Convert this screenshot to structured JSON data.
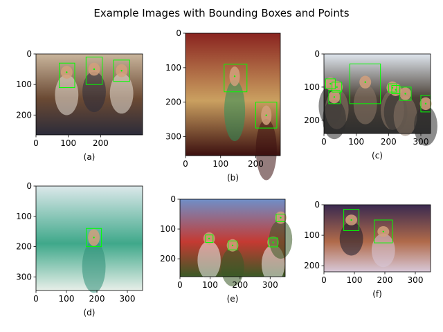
{
  "title": "Example Images with Bounding Boxes and Points",
  "box_color": "#00ff00",
  "chart_data": [
    {
      "type": "image",
      "label": "(a)",
      "xlim": [
        0,
        330
      ],
      "ylim": [
        265,
        0
      ],
      "xticks": [
        0,
        100,
        200
      ],
      "yticks": [
        0,
        100,
        200
      ],
      "scene_colors": [
        "#c9b59c",
        "#6b4a34",
        "#e8e0d6",
        "#2c2c3a"
      ],
      "boxes": [
        [
          72,
          30,
          120,
          110
        ],
        [
          155,
          10,
          205,
          100
        ],
        [
          240,
          20,
          290,
          90
        ]
      ],
      "points": [
        [
          95,
          60
        ],
        [
          180,
          50
        ],
        [
          265,
          55
        ]
      ]
    },
    {
      "type": "image",
      "label": "(b)",
      "xlim": [
        0,
        270
      ],
      "ylim": [
        355,
        0
      ],
      "xticks": [
        0,
        100,
        200
      ],
      "yticks": [
        0,
        100,
        200,
        300
      ],
      "scene_colors": [
        "#8a2420",
        "#caa060",
        "#2e8f5a",
        "#3c1010"
      ],
      "boxes": [
        [
          110,
          90,
          175,
          170
        ],
        [
          200,
          200,
          260,
          275
        ]
      ],
      "points": [
        [
          140,
          125
        ],
        [
          230,
          238
        ]
      ]
    },
    {
      "type": "image",
      "label": "(c)",
      "xlim": [
        0,
        330
      ],
      "ylim": [
        240,
        0
      ],
      "xticks": [
        0,
        100,
        200,
        300
      ],
      "yticks": [
        0,
        100,
        200
      ],
      "scene_colors": [
        "#dfe6ee",
        "#4a4036",
        "#8c7868",
        "#2e2e2e"
      ],
      "boxes": [
        [
          80,
          30,
          175,
          150
        ],
        [
          5,
          75,
          35,
          105
        ],
        [
          25,
          85,
          55,
          115
        ],
        [
          15,
          110,
          50,
          150
        ],
        [
          200,
          90,
          225,
          115
        ],
        [
          210,
          95,
          235,
          120
        ],
        [
          235,
          100,
          270,
          140
        ],
        [
          300,
          125,
          330,
          175
        ]
      ],
      "points": [
        [
          128,
          85
        ],
        [
          20,
          90
        ],
        [
          40,
          100
        ],
        [
          32,
          130
        ],
        [
          212,
          102
        ],
        [
          222,
          108
        ],
        [
          252,
          120
        ],
        [
          315,
          150
        ]
      ]
    },
    {
      "type": "image",
      "label": "(d)",
      "xlim": [
        0,
        350
      ],
      "ylim": [
        345,
        0
      ],
      "xticks": [
        0,
        100,
        200,
        300
      ],
      "yticks": [
        0,
        100,
        200,
        300
      ],
      "scene_colors": [
        "#dce8ea",
        "#3fa88a",
        "#2f8f78",
        "#e8efe9"
      ],
      "boxes": [
        [
          165,
          140,
          215,
          200
        ]
      ],
      "points": [
        [
          190,
          170
        ]
      ]
    },
    {
      "type": "image",
      "label": "(e)",
      "xlim": [
        0,
        350
      ],
      "ylim": [
        260,
        0
      ],
      "xticks": [
        0,
        100,
        200,
        300
      ],
      "yticks": [
        0,
        100,
        200
      ],
      "scene_colors": [
        "#6f8fc8",
        "#c43a32",
        "#f0f0f0",
        "#3a5a26"
      ],
      "boxes": [
        [
          85,
          120,
          110,
          145
        ],
        [
          160,
          140,
          190,
          170
        ],
        [
          295,
          130,
          325,
          160
        ],
        [
          320,
          50,
          350,
          75
        ]
      ],
      "points": [
        [
          97,
          132
        ],
        [
          175,
          155
        ],
        [
          310,
          145
        ],
        [
          335,
          62
        ]
      ]
    },
    {
      "type": "image",
      "label": "(f)",
      "xlim": [
        0,
        350
      ],
      "ylim": [
        220,
        0
      ],
      "xticks": [
        0,
        100,
        200,
        300
      ],
      "yticks": [
        0,
        100,
        200
      ],
      "scene_colors": [
        "#3a2a50",
        "#b06a4a",
        "#1a1a2a",
        "#d8c8d8"
      ],
      "boxes": [
        [
          65,
          15,
          115,
          85
        ],
        [
          165,
          50,
          225,
          125
        ]
      ],
      "points": [
        [
          90,
          50
        ],
        [
          195,
          88
        ]
      ]
    }
  ]
}
